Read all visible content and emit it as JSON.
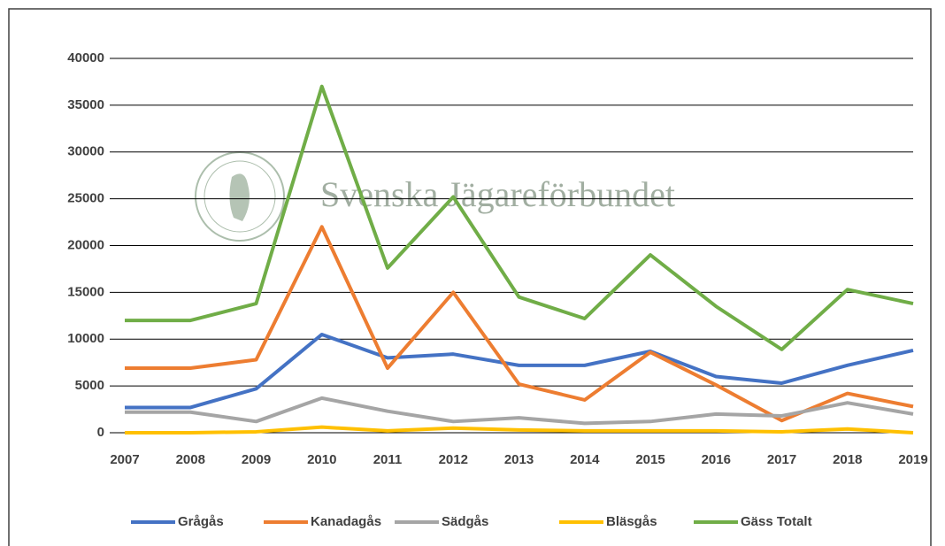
{
  "chart_data": {
    "type": "line",
    "annotation": "Svenska Jägareförbundet",
    "categories": [
      "2007",
      "2008",
      "2009",
      "2010",
      "2011",
      "2012",
      "2013",
      "2014",
      "2015",
      "2016",
      "2017",
      "2018",
      "2019"
    ],
    "series": [
      {
        "name": "Grågås",
        "color": "#4472c4",
        "values": [
          2700,
          2700,
          4700,
          10500,
          8000,
          8400,
          7200,
          7200,
          8700,
          6000,
          5300,
          7200,
          8800
        ]
      },
      {
        "name": "Kanadagås",
        "color": "#ed7d31",
        "values": [
          6900,
          6900,
          7800,
          22000,
          6900,
          15000,
          5200,
          3500,
          8600,
          5100,
          1300,
          4200,
          2800
        ]
      },
      {
        "name": "Sädgås",
        "color": "#a5a5a5",
        "values": [
          2200,
          2200,
          1200,
          3700,
          2300,
          1200,
          1600,
          1000,
          1200,
          2000,
          1800,
          3200,
          2000
        ]
      },
      {
        "name": "Bläsgås",
        "color": "#ffc000",
        "values": [
          0,
          0,
          100,
          600,
          200,
          500,
          300,
          200,
          200,
          200,
          100,
          400,
          0
        ]
      },
      {
        "name": "Gäss Totalt",
        "color": "#70ad47",
        "values": [
          12000,
          12000,
          13800,
          37000,
          17600,
          25200,
          14500,
          12200,
          19000,
          13500,
          8900,
          15300,
          13800
        ]
      }
    ],
    "ylim": [
      0,
      40000
    ],
    "yticks": [
      0,
      5000,
      10000,
      15000,
      20000,
      25000,
      30000,
      35000,
      40000
    ],
    "grid": true,
    "legend": "bottom"
  }
}
